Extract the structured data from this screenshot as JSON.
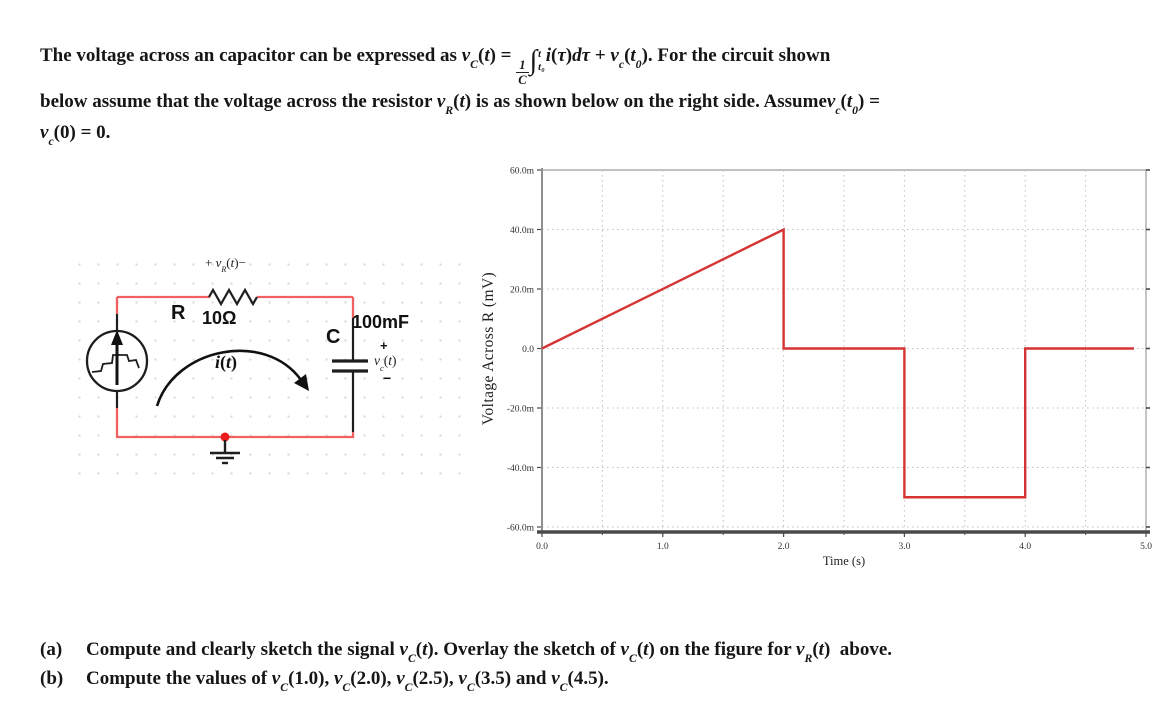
{
  "intro_runs": [
    {
      "t": "The voltage across an capacitor can be expressed as "
    },
    {
      "t": "v",
      "s": "i"
    },
    {
      "t": "C",
      "s": "sub"
    },
    {
      "t": "("
    },
    {
      "t": "t",
      "s": "i"
    },
    {
      "t": ") = "
    },
    {
      "s": "frac",
      "n": "1",
      "d": "C"
    },
    {
      "t": "∫",
      "s": "int",
      "hi": "t",
      "lo": "t₀"
    },
    {
      "t": "i",
      "s": "i"
    },
    {
      "t": "("
    },
    {
      "t": "τ",
      "s": "i"
    },
    {
      "t": ")"
    },
    {
      "t": "dτ",
      "s": "i"
    },
    {
      "t": " + "
    },
    {
      "t": "v",
      "s": "i"
    },
    {
      "t": "c",
      "s": "sub"
    },
    {
      "t": "("
    },
    {
      "t": "t",
      "s": "i"
    },
    {
      "t": "0",
      "s": "sub"
    },
    {
      "t": "). For the circuit shown"
    },
    {
      "br": true
    },
    {
      "t": "below assume that the voltage across the resistor "
    },
    {
      "t": "v",
      "s": "i"
    },
    {
      "t": "R",
      "s": "sub"
    },
    {
      "t": "("
    },
    {
      "t": "t",
      "s": "i"
    },
    {
      "t": ")"
    },
    {
      "t": " is as shown below on the right side. Assume"
    },
    {
      "t": "v",
      "s": "i"
    },
    {
      "t": "c",
      "s": "sub"
    },
    {
      "t": "("
    },
    {
      "t": "t",
      "s": "i"
    },
    {
      "t": "0",
      "s": "sub"
    },
    {
      "t": ") ="
    },
    {
      "br": true
    },
    {
      "t": "v",
      "s": "i"
    },
    {
      "t": "c",
      "s": "sub"
    },
    {
      "t": "(0) = 0."
    }
  ],
  "questions": {
    "a_label": "(a)",
    "a_runs": [
      {
        "t": "Compute and clearly sketch the signal "
      },
      {
        "t": "v",
        "s": "i"
      },
      {
        "t": "C",
        "s": "sub"
      },
      {
        "t": "("
      },
      {
        "t": "t",
        "s": "i"
      },
      {
        "t": "). Overlay the sketch of "
      },
      {
        "t": "v",
        "s": "i"
      },
      {
        "t": "C",
        "s": "sub"
      },
      {
        "t": "("
      },
      {
        "t": "t",
        "s": "i"
      },
      {
        "t": ") on the figure for "
      },
      {
        "t": "v",
        "s": "i"
      },
      {
        "t": "R",
        "s": "sub"
      },
      {
        "t": "("
      },
      {
        "t": "t",
        "s": "i"
      },
      {
        "t": ")  above."
      }
    ],
    "b_label": "(b)",
    "b_runs": [
      {
        "t": "Compute the values of "
      },
      {
        "t": "v",
        "s": "i"
      },
      {
        "t": "C",
        "s": "sub"
      },
      {
        "t": "(1.0), "
      },
      {
        "t": "v",
        "s": "i"
      },
      {
        "t": "C",
        "s": "sub"
      },
      {
        "t": "(2.0), "
      },
      {
        "t": "v",
        "s": "i"
      },
      {
        "t": "C",
        "s": "sub"
      },
      {
        "t": "(2.5), "
      },
      {
        "t": "v",
        "s": "i"
      },
      {
        "t": "C",
        "s": "sub"
      },
      {
        "t": "(3.5) and "
      },
      {
        "t": "v",
        "s": "i"
      },
      {
        "t": "C",
        "s": "sub"
      },
      {
        "t": "(4.5)."
      }
    ]
  },
  "circuit": {
    "wire_color": "#f26161",
    "component_color": "#1e1e1e",
    "node_dot_color": "#ea1c1c",
    "labels": {
      "r_name": "R",
      "r_value": "10Ω",
      "c_name": "C",
      "c_value": "100mF",
      "cap_plus": "+",
      "cap_minus": "−",
      "vr_runs": [
        {
          "t": "+ "
        },
        {
          "t": "v",
          "s": "i"
        },
        {
          "t": "R",
          "s": "sub"
        },
        {
          "t": "("
        },
        {
          "t": "t",
          "s": "i"
        },
        {
          "t": ")−"
        }
      ],
      "vc_runs": [
        {
          "t": "v",
          "s": "i"
        },
        {
          "t": "c",
          "s": "sub"
        },
        {
          "t": "("
        },
        {
          "t": "t",
          "s": "i"
        },
        {
          "t": ")"
        }
      ],
      "i_runs": [
        {
          "t": "i",
          "s": "i"
        },
        {
          "t": "("
        },
        {
          "t": "t",
          "s": "i"
        },
        {
          "t": ")"
        }
      ]
    }
  },
  "chart_data": {
    "type": "line",
    "title": "",
    "xlabel": "Time (s)",
    "ylabel": "Voltage Across R (mV)",
    "xlim": [
      0,
      5
    ],
    "ylim": [
      -60,
      60
    ],
    "x_major_ticks": [
      {
        "v": 0,
        "label": "0.0"
      },
      {
        "v": 1,
        "label": "1.0"
      },
      {
        "v": 2,
        "label": "2.0"
      },
      {
        "v": 3,
        "label": "3.0"
      },
      {
        "v": 4,
        "label": "4.0"
      },
      {
        "v": 5,
        "label": "5.0"
      }
    ],
    "x_minor_step": 0.5,
    "y_ticks": [
      {
        "v": 60,
        "label": "60.0m"
      },
      {
        "v": 40,
        "label": "40.0m"
      },
      {
        "v": 20,
        "label": "20.0m"
      },
      {
        "v": 0,
        "label": "0.0"
      },
      {
        "v": -20,
        "label": "-20.0m"
      },
      {
        "v": -40,
        "label": "-40.0m"
      },
      {
        "v": -60,
        "label": "-60.0m"
      }
    ],
    "grid": "dotted",
    "grid_color": "#bfc6cb",
    "axis_color": "#4a4a4a",
    "yaxis_color": "#8f8f8f",
    "frame_color": "#ababab",
    "legend_position": "none",
    "series": [
      {
        "name": "vR(t)",
        "color": "#d63434",
        "points": [
          [
            0,
            0
          ],
          [
            2,
            40
          ],
          [
            2,
            0
          ],
          [
            3,
            0
          ],
          [
            3,
            -50
          ],
          [
            4,
            -50
          ],
          [
            4,
            0
          ],
          [
            4.9,
            0
          ]
        ]
      }
    ]
  }
}
